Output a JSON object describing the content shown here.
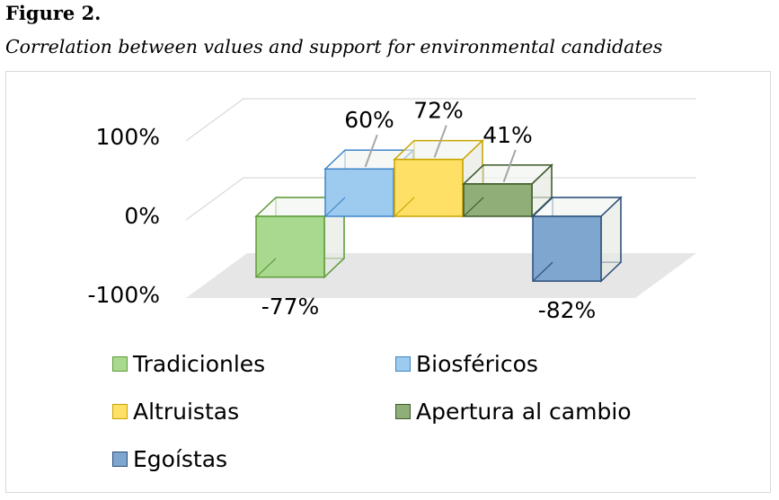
{
  "figure": {
    "label": "Figure 2.",
    "caption": "Correlation between values and support for environmental candidates"
  },
  "chart_data": {
    "type": "bar",
    "style": "3d-column",
    "categories": [
      "Tradicionles",
      "Biosféricos",
      "Altruistas",
      "Apertura al cambio",
      "Egoístas"
    ],
    "values": [
      -0.77,
      0.6,
      0.72,
      0.41,
      -0.82
    ],
    "data_labels": [
      "-77%",
      "60%",
      "72%",
      "41%",
      "-82%"
    ],
    "ylim": [
      -1,
      1
    ],
    "yticks": [
      "100%",
      "0%",
      "-100%"
    ],
    "grid": true,
    "legend_position": "bottom",
    "colors": {
      "Tradicionles": {
        "fill": "#a9d88f",
        "stroke": "#5f9b3a"
      },
      "Biosféricos": {
        "fill": "#9dcbf0",
        "stroke": "#3f86c8"
      },
      "Altruistas": {
        "fill": "#ffe066",
        "stroke": "#c9a400"
      },
      "Apertura al cambio": {
        "fill": "#8fae78",
        "stroke": "#3e5a2b"
      },
      "Egoístas": {
        "fill": "#7ea6cf",
        "stroke": "#2b4f7a"
      }
    }
  }
}
